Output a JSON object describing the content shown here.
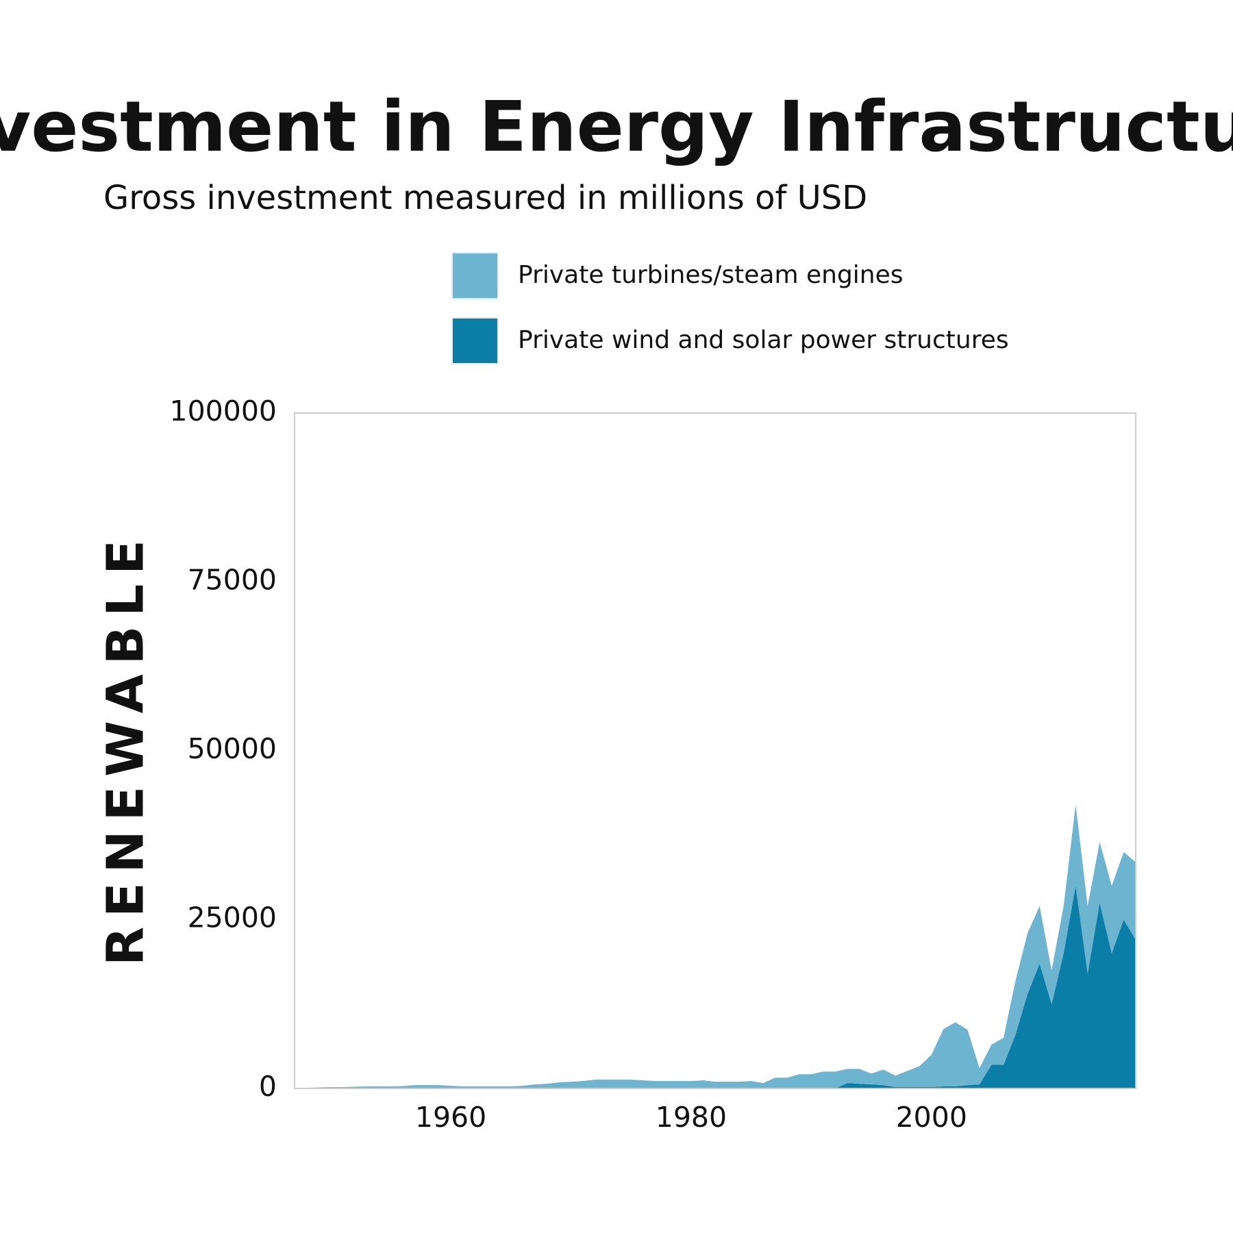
{
  "chart_data": {
    "type": "stacked_area",
    "title": "Investment in Energy Infrastructure",
    "subtitle": "Gross investment measured in millions of USD",
    "y_label": "RENEWABLE",
    "x": [
      1947,
      1948,
      1949,
      1950,
      1951,
      1952,
      1953,
      1954,
      1955,
      1956,
      1957,
      1958,
      1959,
      1960,
      1961,
      1962,
      1963,
      1964,
      1965,
      1966,
      1967,
      1968,
      1969,
      1970,
      1971,
      1972,
      1973,
      1974,
      1975,
      1976,
      1977,
      1978,
      1979,
      1980,
      1981,
      1982,
      1983,
      1984,
      1985,
      1986,
      1987,
      1988,
      1989,
      1990,
      1991,
      1992,
      1993,
      1994,
      1995,
      1996,
      1997,
      1998,
      1999,
      2000,
      2001,
      2002,
      2003,
      2004,
      2005,
      2006,
      2007,
      2008,
      2009,
      2010,
      2011,
      2012,
      2013,
      2014,
      2015,
      2016,
      2017
    ],
    "series": [
      {
        "name": "Private turbines/steam engines",
        "color": "#6cb4cf",
        "values": [
          100,
          100,
          150,
          200,
          200,
          250,
          300,
          300,
          300,
          350,
          500,
          500,
          500,
          400,
          300,
          300,
          300,
          300,
          300,
          400,
          600,
          700,
          900,
          1000,
          1100,
          1300,
          1300,
          1300,
          1300,
          1200,
          1100,
          1100,
          1100,
          1100,
          1200,
          1000,
          1000,
          1000,
          1100,
          800,
          1600,
          1600,
          2100,
          2100,
          2500,
          2500,
          2100,
          2200,
          1600,
          2300,
          1700,
          2400,
          3100,
          4800,
          8500,
          9500,
          8200,
          2400,
          3000,
          4000,
          8000,
          9000,
          8500,
          5000,
          7000,
          12000,
          10000,
          9000,
          10000,
          10000,
          11500
        ]
      },
      {
        "name": "Private wind and solar power structures",
        "color": "#0b7ea8",
        "values": [
          0,
          0,
          0,
          0,
          0,
          0,
          0,
          0,
          0,
          0,
          0,
          0,
          0,
          0,
          0,
          0,
          0,
          0,
          0,
          0,
          0,
          0,
          0,
          0,
          0,
          0,
          0,
          0,
          0,
          0,
          0,
          0,
          0,
          0,
          0,
          0,
          0,
          0,
          0,
          0,
          0,
          0,
          0,
          0,
          0,
          0,
          800,
          700,
          600,
          500,
          200,
          200,
          200,
          200,
          300,
          300,
          500,
          600,
          3500,
          3500,
          8000,
          14000,
          18500,
          12500,
          20000,
          30000,
          17000,
          27500,
          20000,
          25000,
          22000
        ]
      }
    ],
    "xlim": [
      1947,
      2017
    ],
    "xticks": [
      1960,
      1980,
      2000
    ],
    "ylim": [
      0,
      100000
    ],
    "yticks": [
      0,
      25000,
      50000,
      75000,
      100000
    ],
    "grid": false
  }
}
